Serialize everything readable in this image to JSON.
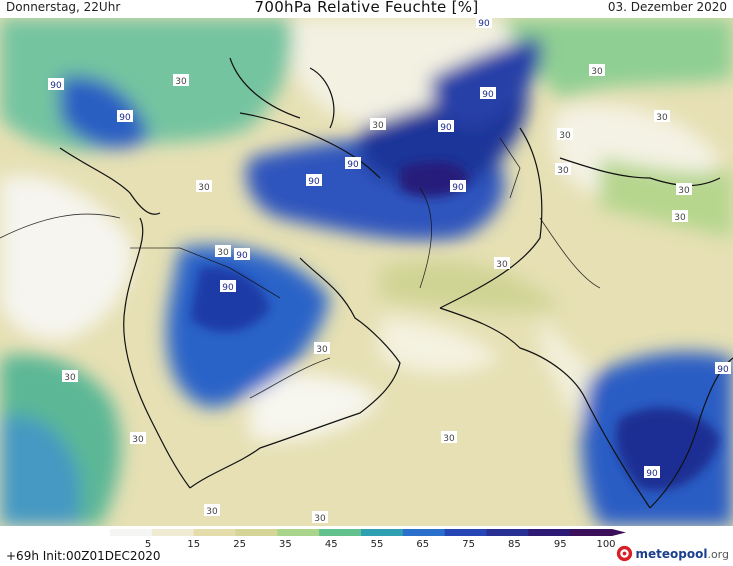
{
  "header": {
    "left": "Donnerstag, 22Uhr",
    "center": "700hPa Relative Feuchte [%]",
    "right": "03. Dezember 2020"
  },
  "map": {
    "contour_labels": [
      "90",
      "30",
      "90",
      "90",
      "90",
      "90",
      "90",
      "90",
      "90",
      "90",
      "90",
      "90",
      "90",
      "30",
      "30",
      "30",
      "30",
      "30",
      "30",
      "30",
      "30",
      "30",
      "30",
      "30",
      "30",
      "30",
      "30",
      "30",
      "30"
    ]
  },
  "colorbar": {
    "ticks": [
      "5",
      "15",
      "25",
      "35",
      "45",
      "55",
      "65",
      "75",
      "85",
      "95",
      "100"
    ],
    "colors": [
      "#f5f5f3",
      "#f0ecd3",
      "#e4dcaa",
      "#d4d596",
      "#a9d48c",
      "#63c18e",
      "#2f9fb2",
      "#2a6fcc",
      "#2746b5",
      "#283094",
      "#2c1a74",
      "#3c0f5a"
    ]
  },
  "footer": {
    "init": "+69h  Init:00Z01DEC2020",
    "brand_main": "meteopool",
    "brand_suffix": ".org"
  }
}
